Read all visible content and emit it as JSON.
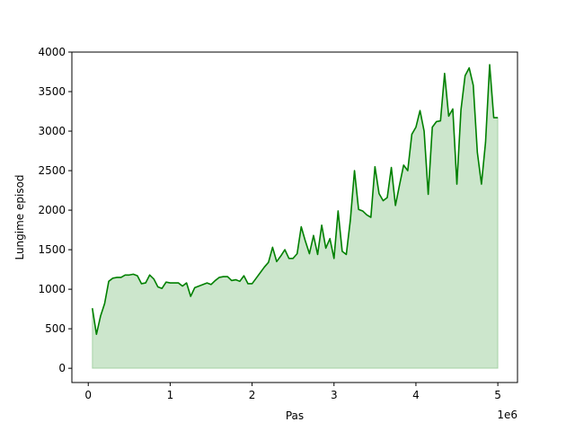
{
  "chart_data": {
    "type": "area",
    "title": "",
    "xlabel": "Pas",
    "ylabel": "Lungime episod",
    "x_offset_label": "1e6",
    "xlim": [
      -0.2,
      5.24
    ],
    "ylim": [
      -180,
      4000
    ],
    "x_ticks": [
      0,
      1,
      2,
      3,
      4,
      5
    ],
    "x_tick_labels": [
      "0",
      "1",
      "2",
      "3",
      "4",
      "5"
    ],
    "y_ticks": [
      0,
      500,
      1000,
      1500,
      2000,
      2500,
      3000,
      3500,
      4000
    ],
    "y_tick_labels": [
      "0",
      "500",
      "1000",
      "1500",
      "2000",
      "2500",
      "3000",
      "3500",
      "4000"
    ],
    "grid": false,
    "legend": "none",
    "line_color": "#008000",
    "fill_color": "#008000",
    "fill_opacity": 0.2,
    "series": [
      {
        "x": [
          0.05,
          0.1,
          0.15,
          0.2,
          0.25,
          0.3,
          0.35,
          0.4,
          0.45,
          0.5,
          0.55,
          0.6,
          0.65,
          0.7,
          0.75,
          0.8,
          0.85,
          0.9,
          0.95,
          1.0,
          1.05,
          1.1,
          1.15,
          1.2,
          1.25,
          1.3,
          1.35,
          1.4,
          1.45,
          1.5,
          1.55,
          1.6,
          1.65,
          1.7,
          1.75,
          1.8,
          1.85,
          1.9,
          1.95,
          2.0,
          2.05,
          2.1,
          2.15,
          2.2,
          2.25,
          2.3,
          2.35,
          2.4,
          2.45,
          2.5,
          2.55,
          2.6,
          2.65,
          2.7,
          2.75,
          2.8,
          2.85,
          2.9,
          2.95,
          3.0,
          3.05,
          3.1,
          3.15,
          3.2,
          3.25,
          3.3,
          3.35,
          3.4,
          3.45,
          3.5,
          3.55,
          3.6,
          3.65,
          3.7,
          3.75,
          3.8,
          3.85,
          3.9,
          3.95,
          4.0,
          4.05,
          4.1,
          4.15,
          4.2,
          4.25,
          4.3,
          4.35,
          4.4,
          4.45,
          4.5,
          4.55,
          4.6,
          4.65,
          4.7,
          4.75,
          4.8,
          4.85,
          4.9,
          4.95,
          5.0
        ],
        "values": [
          760,
          430,
          660,
          820,
          1100,
          1140,
          1150,
          1150,
          1180,
          1180,
          1190,
          1170,
          1070,
          1080,
          1180,
          1130,
          1030,
          1010,
          1090,
          1080,
          1080,
          1080,
          1040,
          1080,
          910,
          1020,
          1040,
          1060,
          1080,
          1060,
          1110,
          1150,
          1160,
          1160,
          1110,
          1120,
          1100,
          1170,
          1070,
          1070,
          1140,
          1210,
          1280,
          1340,
          1530,
          1350,
          1420,
          1500,
          1390,
          1390,
          1450,
          1790,
          1610,
          1450,
          1680,
          1440,
          1810,
          1520,
          1640,
          1390,
          1990,
          1480,
          1440,
          1880,
          2500,
          2010,
          1990,
          1940,
          1910,
          2550,
          2210,
          2120,
          2160,
          2540,
          2060,
          2320,
          2570,
          2500,
          2960,
          3050,
          3260,
          3000,
          2200,
          3050,
          3120,
          3130,
          3730,
          3190,
          3280,
          2330,
          3270,
          3700,
          3800,
          3580,
          2730,
          2330,
          2860,
          3840,
          3170,
          3170
        ]
      }
    ]
  }
}
